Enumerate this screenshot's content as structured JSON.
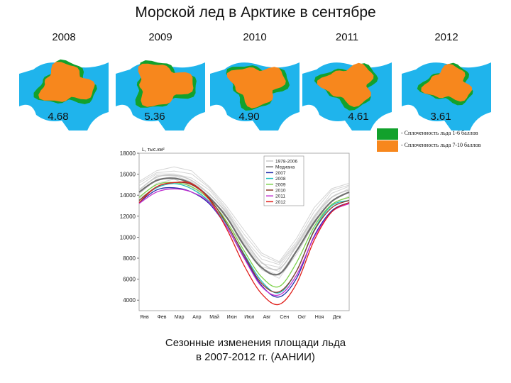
{
  "title": "Морской лед в Арктике в сентябре",
  "colors": {
    "ocean": "#1fb4ec",
    "land": "#ffffff",
    "ice_low": "#12a12c",
    "ice_high": "#f7871d"
  },
  "maps": [
    {
      "year": "2008",
      "area": "4.68"
    },
    {
      "year": "2009",
      "area": "5.36"
    },
    {
      "year": "2010",
      "area": "4.90"
    },
    {
      "year": "2011",
      "area": "4.61"
    },
    {
      "year": "2012",
      "area": "3.61"
    }
  ],
  "legend": [
    {
      "label": "- Сплоченность льда 1-6 баллов",
      "color": "#12a12c"
    },
    {
      "label": "- Сплоченность льда 7-10 баллов",
      "color": "#f7871d"
    }
  ],
  "caption": {
    "line1": "Сезонные изменения площади льда",
    "line2": "в 2007-2012 гг. (ААНИИ)"
  },
  "chart_data": {
    "type": "line",
    "ylabel": "L, тыс.км²",
    "ylim": [
      3000,
      18000
    ],
    "yticks": [
      "18000",
      "16000",
      "14000",
      "12000",
      "10000",
      "8000",
      "6000",
      "4000"
    ],
    "ytick_values": [
      18000,
      16000,
      14000,
      12000,
      10000,
      8000,
      6000,
      4000
    ],
    "categories": [
      "Янв",
      "Фев",
      "Мар",
      "Апр",
      "Май",
      "Июн",
      "Июл",
      "Авг",
      "Сен",
      "Окт",
      "Ноя",
      "Дек"
    ],
    "legend_position": "top-right",
    "series": [
      {
        "name": "1978-2006",
        "color": "#c9c9c9",
        "values": [
          14500,
          15700,
          15900,
          15400,
          14100,
          12300,
          9800,
          7600,
          7000,
          9200,
          11900,
          13800
        ]
      },
      {
        "name": "Медиана",
        "color": "#707070",
        "values": [
          14300,
          15400,
          15600,
          15100,
          13800,
          11900,
          9200,
          7100,
          6500,
          8700,
          11400,
          13400
        ]
      },
      {
        "name": "2007",
        "color": "#1e2aa8",
        "values": [
          13300,
          14500,
          14700,
          14300,
          13200,
          11000,
          8100,
          5400,
          4300,
          6100,
          10100,
          12500
        ]
      },
      {
        "name": "2008",
        "color": "#20c0c0",
        "values": [
          13500,
          14700,
          15100,
          14600,
          13400,
          11200,
          8400,
          5800,
          4700,
          6800,
          10700,
          13000
        ]
      },
      {
        "name": "2009",
        "color": "#7cd14a",
        "values": [
          13800,
          15000,
          15200,
          14800,
          13600,
          11500,
          8700,
          6200,
          5300,
          7600,
          11000,
          13100
        ]
      },
      {
        "name": "2010",
        "color": "#8b3a2a",
        "values": [
          13500,
          14800,
          15200,
          15000,
          13700,
          11300,
          8300,
          5600,
          4800,
          6800,
          10600,
          12800
        ]
      },
      {
        "name": "2011",
        "color": "#c030d0",
        "values": [
          13200,
          14300,
          14600,
          14300,
          13300,
          11000,
          8000,
          5300,
          4500,
          6400,
          10000,
          12400
        ]
      },
      {
        "name": "2012",
        "color": "#e0201c",
        "values": [
          13300,
          14800,
          15200,
          15100,
          13600,
          10800,
          7300,
          4600,
          3600,
          5600,
          9700,
          12400
        ]
      }
    ]
  }
}
